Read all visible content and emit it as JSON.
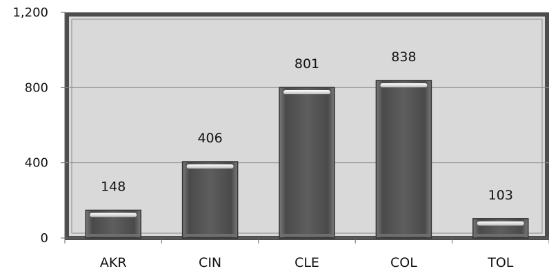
{
  "chart_data": {
    "type": "bar",
    "title": "",
    "xlabel": "",
    "ylabel": "",
    "categories": [
      "AKR",
      "CIN",
      "CLE",
      "COL",
      "TOL"
    ],
    "values": [
      148,
      406,
      801,
      838,
      103
    ],
    "value_labels": [
      "148",
      "406",
      "801",
      "838",
      "103"
    ],
    "ylim": [
      0,
      1200
    ],
    "yticks": [
      0,
      400,
      800,
      1200
    ],
    "ytick_labels": [
      "0",
      "400",
      "800",
      "1,200"
    ],
    "grid": true,
    "legend": "none",
    "colors": {
      "bar": "#555555",
      "bar_edge": "#333333",
      "plot_fill": "#d9d9d9",
      "plot_border": "#4d4d4d",
      "grid": "#8c8c8c"
    }
  }
}
